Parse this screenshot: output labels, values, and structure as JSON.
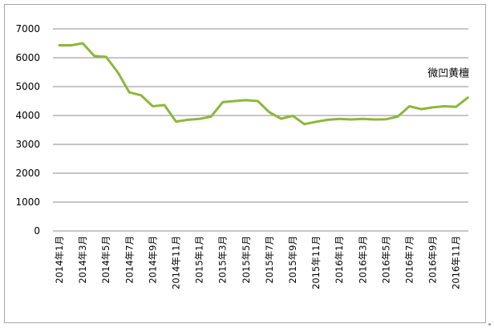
{
  "chart_data": {
    "type": "line",
    "ylim": [
      0,
      7000
    ],
    "yticks": [
      0,
      1000,
      2000,
      3000,
      4000,
      5000,
      6000,
      7000
    ],
    "grid": "horizontal",
    "x": [
      "2014年1月",
      "2014年2月",
      "2014年3月",
      "2014年4月",
      "2014年5月",
      "2014年6月",
      "2014年7月",
      "2014年8月",
      "2014年9月",
      "2014年10月",
      "2014年11月",
      "2014年12月",
      "2015年1月",
      "2015年2月",
      "2015年3月",
      "2015年4月",
      "2015年5月",
      "2015年6月",
      "2015年7月",
      "2015年8月",
      "2015年9月",
      "2015年10月",
      "2015年11月",
      "2015年12月",
      "2016年1月",
      "2016年2月",
      "2016年3月",
      "2016年4月",
      "2016年5月",
      "2016年6月",
      "2016年7月",
      "2016年8月",
      "2016年9月",
      "2016年10月",
      "2016年11月",
      "2016年12月"
    ],
    "xtick_labels": [
      "2014年1月",
      "2014年3月",
      "2014年5月",
      "2014年7月",
      "2014年9月",
      "2014年11月",
      "2015年1月",
      "2015年3月",
      "2015年5月",
      "2015年7月",
      "2015年9月",
      "2015年11月",
      "2016年1月",
      "2016年3月",
      "2016年5月",
      "2016年7月",
      "2016年9月",
      "2016年11月"
    ],
    "series": [
      {
        "name": "微凹黄檀",
        "color": "#8db73c",
        "values": [
          6430,
          6430,
          6500,
          6060,
          6030,
          5500,
          4800,
          4700,
          4320,
          4360,
          3790,
          3850,
          3880,
          3960,
          4460,
          4500,
          4530,
          4500,
          4110,
          3890,
          3990,
          3700,
          3780,
          3850,
          3880,
          3860,
          3880,
          3860,
          3870,
          3960,
          4320,
          4220,
          4280,
          4320,
          4300,
          4620
        ]
      }
    ]
  }
}
